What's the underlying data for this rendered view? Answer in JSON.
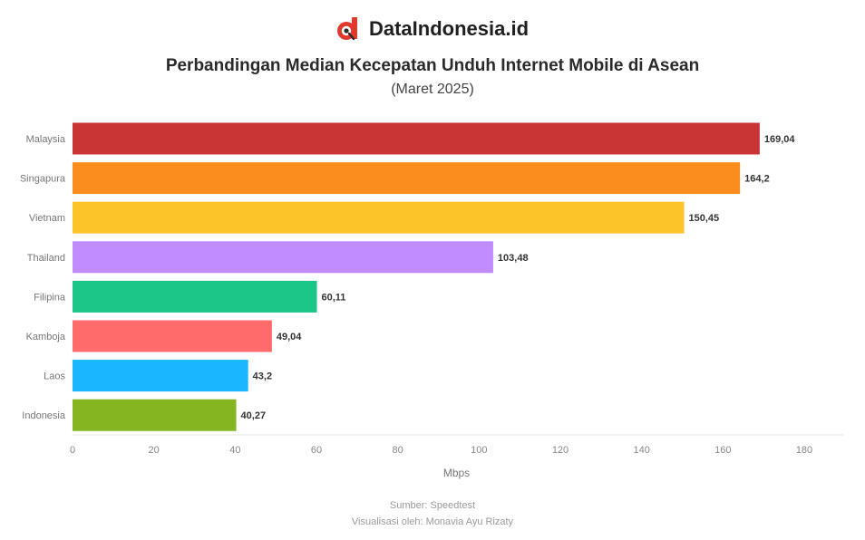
{
  "header": {
    "brand_name": "DataIndonesia.id",
    "brand_logo_icon": "dataindonesia-logo-icon",
    "brand_color": "#e03a2f"
  },
  "chart_data": {
    "type": "bar",
    "orientation": "horizontal",
    "title": "Perbandingan Median Kecepatan Unduh Internet Mobile di Asean",
    "subtitle": "(Maret 2025)",
    "xlabel": "Mbps",
    "ylabel": "",
    "xlim": [
      0,
      180
    ],
    "xticks": [
      0,
      20,
      40,
      60,
      80,
      100,
      120,
      140,
      160,
      180
    ],
    "grid": false,
    "legend": "none",
    "categories": [
      "Malaysia",
      "Singapura",
      "Vietnam",
      "Thailand",
      "Filipina",
      "Kamboja",
      "Laos",
      "Indonesia"
    ],
    "values": [
      169.04,
      164.2,
      150.45,
      103.48,
      60.11,
      49.04,
      43.2,
      40.27
    ],
    "value_labels": [
      "169,04",
      "164,2",
      "150,45",
      "103,48",
      "60,11",
      "49,04",
      "43,2",
      "40,27"
    ],
    "colors": [
      "#c93535",
      "#fb8c1e",
      "#fdc42a",
      "#c18cff",
      "#1cc588",
      "#ff6b6b",
      "#1ab6ff",
      "#86b522"
    ]
  },
  "footer": {
    "source": "Sumber: Speedtest",
    "credit": "Visualisasi oleh: Monavia Ayu Rizaty"
  }
}
